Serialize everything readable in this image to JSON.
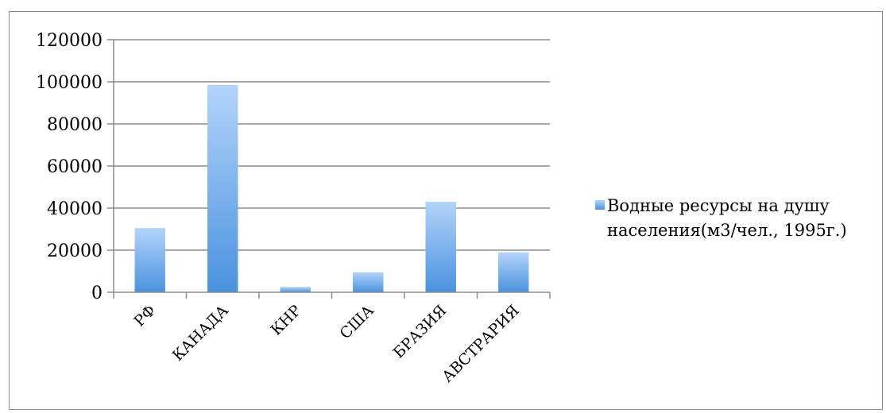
{
  "chart_data": {
    "type": "bar",
    "categories": [
      "РФ",
      "КАНАДА",
      "КНР",
      "США",
      "БРАЗИЯ",
      "АВСТРАРИЯ"
    ],
    "series": [
      {
        "name": "Водные ресурсы на душу населения(м3/чел., 1995г.)",
        "values": [
          30500,
          98500,
          2500,
          9500,
          43000,
          19000
        ]
      }
    ],
    "ylim": [
      0,
      120000
    ],
    "yticks": [
      0,
      20000,
      40000,
      60000,
      80000,
      100000,
      120000
    ],
    "grid": true,
    "legend": "right",
    "legend_lines": [
      "Водные ресурсы на душу",
      "населения(м3/чел., 1995г.)"
    ],
    "bar_color_top": "#b3d4fa",
    "bar_color_bottom": "#4a92df",
    "gridline_color": "#8c8c8c"
  }
}
